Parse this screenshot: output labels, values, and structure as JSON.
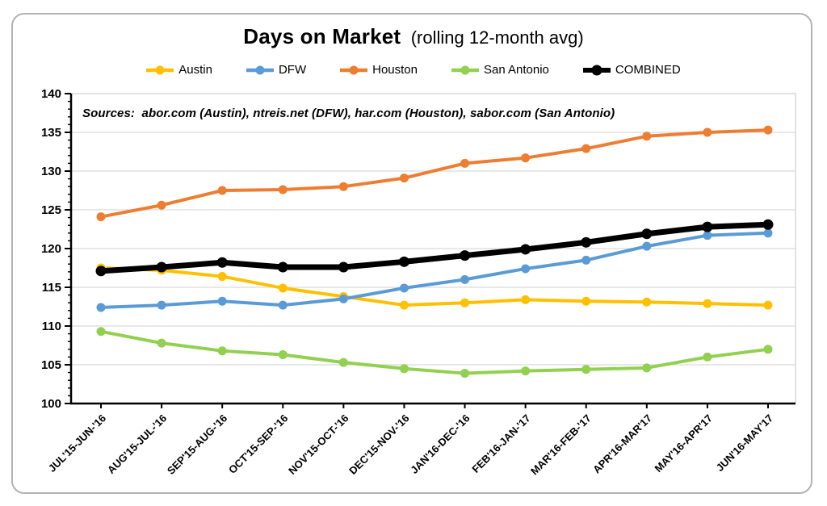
{
  "title": {
    "main": "Days on Market",
    "sub": "(rolling 12-month avg)"
  },
  "sources_note": "Sources:  abor.com (Austin), ntreis.net (DFW), har.com (Houston), sabor.com (San Antonio)",
  "chart_data": {
    "type": "line",
    "title": "Days on Market (rolling 12-month avg)",
    "xlabel": "",
    "ylabel": "",
    "ylim": [
      100,
      140
    ],
    "y_major_step": 5,
    "y_minor_step": 1,
    "grid": true,
    "legend_position": "top",
    "categories": [
      "JUL'15-JUN-'16",
      "AUG'15-JUL-'16",
      "SEP'15-AUG-'16",
      "OCT'15-SEP-'16",
      "NOV'15-OCT-'16",
      "DEC'15-NOV-'16",
      "JAN'16-DEC-'16",
      "FEB'16-JAN-'17",
      "MAR'16-FEB-'17",
      "APR'16-MAR'17",
      "MAY'16-APR'17",
      "JUN'16-MAY'17"
    ],
    "series": [
      {
        "name": "Austin",
        "color": "#FFC000",
        "line_width": 4,
        "marker_radius": 5.5,
        "values": [
          117.5,
          117.2,
          116.4,
          114.9,
          113.8,
          112.7,
          113.0,
          113.4,
          113.2,
          113.1,
          112.9,
          112.7
        ]
      },
      {
        "name": "DFW",
        "color": "#5B9BD5",
        "line_width": 4,
        "marker_radius": 5.5,
        "values": [
          112.4,
          112.7,
          113.2,
          112.7,
          113.5,
          114.9,
          116.0,
          117.4,
          118.5,
          120.3,
          121.7,
          122.0
        ]
      },
      {
        "name": "Houston",
        "color": "#ED7D31",
        "line_width": 4,
        "marker_radius": 5.5,
        "values": [
          124.1,
          125.6,
          127.5,
          127.6,
          128.0,
          129.1,
          131.0,
          131.7,
          132.9,
          134.5,
          135.0,
          135.3
        ]
      },
      {
        "name": "San Antonio",
        "color": "#92D050",
        "line_width": 4,
        "marker_radius": 5.5,
        "values": [
          109.3,
          107.8,
          106.8,
          106.3,
          105.3,
          104.5,
          103.9,
          104.2,
          104.4,
          104.6,
          106.0,
          107.0
        ]
      },
      {
        "name": "COMBINED",
        "color": "#000000",
        "line_width": 7,
        "marker_radius": 6.5,
        "values": [
          117.1,
          117.6,
          118.2,
          117.6,
          117.6,
          118.3,
          119.1,
          119.9,
          120.8,
          121.9,
          122.8,
          123.1
        ]
      }
    ],
    "draw_order": [
      "San Antonio",
      "Austin",
      "DFW",
      "Houston",
      "COMBINED"
    ],
    "colors": {
      "grid": "#d9d9d9",
      "axis": "#000000",
      "frame": "#d9d9d9",
      "card_border": "#b3b3b3"
    }
  }
}
